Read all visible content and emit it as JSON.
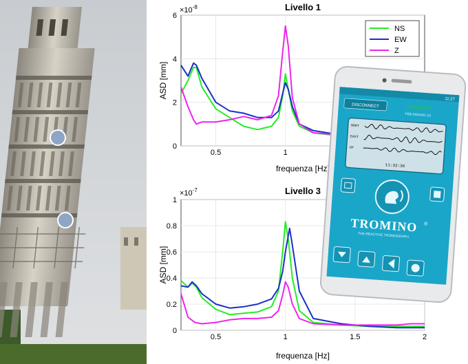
{
  "chart_data": [
    {
      "type": "line",
      "title": "Livello 1",
      "xlabel": "frequenza [Hz]",
      "ylabel": "ASD [mm]",
      "exponent": "×10",
      "exponent_power": "-8",
      "xlim": [
        0.25,
        2
      ],
      "ylim": [
        0,
        6
      ],
      "xticks": [
        0.5,
        1
      ],
      "xtick_labels": [
        "0.5",
        "1"
      ],
      "yticks": [
        0,
        2,
        4,
        6
      ],
      "ytick_labels": [
        "0",
        "2",
        "4",
        "6"
      ],
      "grid": true,
      "legend_position": "top-right",
      "series": [
        {
          "name": "NS",
          "color": "#22ee22",
          "x": [
            0.25,
            0.3,
            0.34,
            0.36,
            0.4,
            0.5,
            0.6,
            0.7,
            0.8,
            0.9,
            0.95,
            0.98,
            1.0,
            1.02,
            1.05,
            1.1,
            1.2,
            1.4,
            1.6,
            1.8,
            2.0
          ],
          "y": [
            2.4,
            3.0,
            3.6,
            3.6,
            2.7,
            1.7,
            1.3,
            0.9,
            0.75,
            0.9,
            1.3,
            2.3,
            3.3,
            2.6,
            1.6,
            0.9,
            0.6,
            0.45,
            0.4,
            0.35,
            0.35
          ]
        },
        {
          "name": "EW",
          "color": "#1a2fc9",
          "x": [
            0.25,
            0.3,
            0.34,
            0.36,
            0.4,
            0.5,
            0.6,
            0.7,
            0.8,
            0.9,
            0.95,
            0.98,
            1.0,
            1.02,
            1.05,
            1.1,
            1.2,
            1.4,
            1.6,
            1.8,
            2.0
          ],
          "y": [
            3.7,
            3.2,
            3.8,
            3.7,
            3.1,
            2.0,
            1.6,
            1.5,
            1.3,
            1.3,
            1.6,
            2.4,
            2.9,
            2.6,
            1.8,
            1.0,
            0.7,
            0.5,
            0.45,
            0.4,
            0.4
          ]
        },
        {
          "name": "Z",
          "color": "#ee22ee",
          "x": [
            0.25,
            0.3,
            0.34,
            0.36,
            0.4,
            0.5,
            0.6,
            0.7,
            0.8,
            0.9,
            0.95,
            0.98,
            1.0,
            1.02,
            1.05,
            1.1,
            1.2,
            1.4,
            1.6,
            1.8,
            2.0
          ],
          "y": [
            2.7,
            1.8,
            1.2,
            1.0,
            1.1,
            1.1,
            1.2,
            1.35,
            1.2,
            1.4,
            2.3,
            4.3,
            5.5,
            4.6,
            2.2,
            1.0,
            0.6,
            0.5,
            0.45,
            0.4,
            0.4
          ]
        }
      ]
    },
    {
      "type": "line",
      "title": "Livello 3",
      "xlabel": "frequenza [Hz]",
      "ylabel": "ASD [mm]",
      "exponent": "×10",
      "exponent_power": "-7",
      "xlim": [
        0.25,
        2
      ],
      "ylim": [
        0,
        1
      ],
      "xticks": [
        0.5,
        1,
        1.5,
        2
      ],
      "xtick_labels": [
        "0.5",
        "1",
        "1.5",
        "2"
      ],
      "yticks": [
        0,
        0.2,
        0.4,
        0.6,
        0.8,
        1
      ],
      "ytick_labels": [
        "0",
        "0.2",
        "0.4",
        "0.6",
        "0.8",
        "1"
      ],
      "grid": true,
      "series": [
        {
          "name": "NS",
          "color": "#22ee22",
          "x": [
            0.25,
            0.3,
            0.33,
            0.36,
            0.4,
            0.5,
            0.6,
            0.7,
            0.8,
            0.9,
            0.95,
            0.98,
            1.0,
            1.02,
            1.05,
            1.1,
            1.2,
            1.4,
            1.6,
            1.8,
            2.0
          ],
          "y": [
            0.38,
            0.33,
            0.36,
            0.33,
            0.25,
            0.16,
            0.12,
            0.13,
            0.14,
            0.18,
            0.3,
            0.6,
            0.83,
            0.7,
            0.4,
            0.15,
            0.06,
            0.04,
            0.03,
            0.03,
            0.03
          ]
        },
        {
          "name": "EW",
          "color": "#1a2fc9",
          "x": [
            0.25,
            0.3,
            0.33,
            0.36,
            0.4,
            0.5,
            0.6,
            0.7,
            0.8,
            0.9,
            0.95,
            0.98,
            1.0,
            1.03,
            1.05,
            1.1,
            1.2,
            1.4,
            1.6,
            1.8,
            2.0
          ],
          "y": [
            0.34,
            0.33,
            0.37,
            0.34,
            0.28,
            0.2,
            0.17,
            0.18,
            0.2,
            0.24,
            0.32,
            0.45,
            0.6,
            0.78,
            0.65,
            0.3,
            0.09,
            0.05,
            0.03,
            0.02,
            0.02
          ]
        },
        {
          "name": "Z",
          "color": "#ee22ee",
          "x": [
            0.25,
            0.3,
            0.35,
            0.4,
            0.5,
            0.6,
            0.7,
            0.8,
            0.9,
            0.95,
            0.98,
            1.0,
            1.02,
            1.05,
            1.1,
            1.2,
            1.4,
            1.6,
            1.8,
            1.9,
            2.0
          ],
          "y": [
            0.28,
            0.1,
            0.06,
            0.05,
            0.06,
            0.08,
            0.09,
            0.09,
            0.1,
            0.15,
            0.27,
            0.37,
            0.33,
            0.2,
            0.09,
            0.05,
            0.04,
            0.04,
            0.04,
            0.05,
            0.05
          ]
        }
      ]
    }
  ],
  "phone": {
    "brand": "TROMINO",
    "registered": "®",
    "tagline": "THE REACTIVE TROMOGRAPH",
    "btn_disconnect": "DISCONNECT",
    "status_connected": "CONNECTED",
    "status_date": "FEB 04/04/01:19",
    "status_time": "11:27",
    "trace_labels": [
      "NORT",
      "EAST",
      "UP"
    ],
    "trace_time": "11:32:36",
    "accent_color": "#1aa6c8",
    "icons": [
      "record-icon",
      "voice-icon",
      "stop-icon",
      "arrow-down-icon",
      "arrow-up-icon",
      "arrow-left-icon",
      "circle-icon"
    ]
  },
  "photo": {
    "subject": "leaning-tower",
    "marker_color": "#8fa5c6"
  }
}
